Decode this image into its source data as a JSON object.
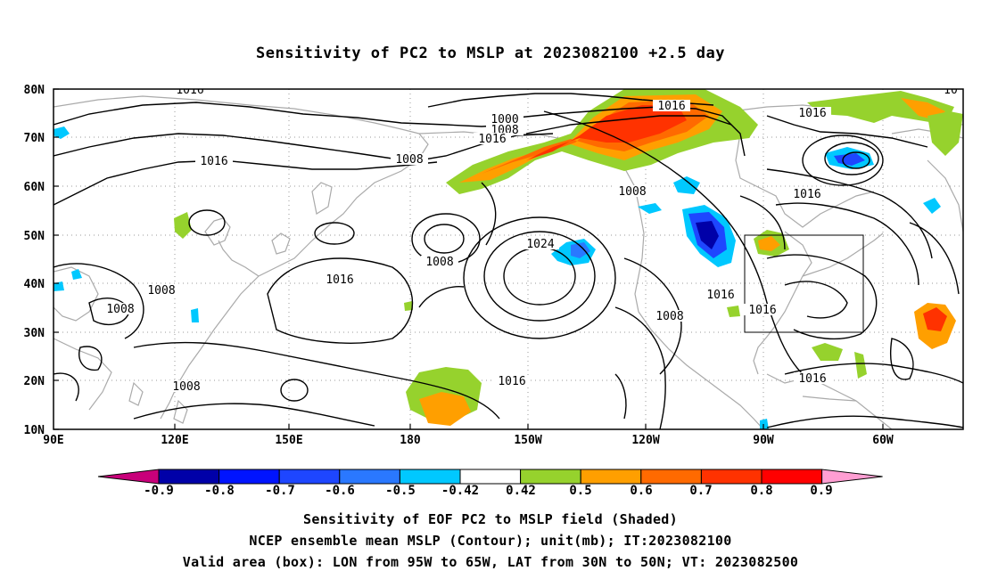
{
  "title": "Sensitivity of PC2 to MSLP at 2023082100 +2.5 day",
  "lat_labels": [
    "80N",
    "70N",
    "60N",
    "50N",
    "40N",
    "30N",
    "20N",
    "10N"
  ],
  "lon_labels": [
    "90E",
    "120E",
    "150E",
    "180",
    "150W",
    "120W",
    "90W",
    "60W"
  ],
  "contour_labels": [
    "1016",
    "1000",
    "1008",
    "1016",
    "1016",
    "1008",
    "1016",
    "1016",
    "1008",
    "1016",
    "1024",
    "1008",
    "1016",
    "1016",
    "1008",
    "1016",
    "1008",
    "1008",
    "1016",
    "1008",
    "1016",
    "10"
  ],
  "colorbar": {
    "ticks": [
      "-0.9",
      "-0.8",
      "-0.7",
      "-0.6",
      "-0.5",
      "-0.42",
      "0.42",
      "0.5",
      "0.6",
      "0.7",
      "0.8",
      "0.9"
    ],
    "colors": [
      "#c8007a",
      "#0000a8",
      "#0014ff",
      "#1e46ff",
      "#2a78ff",
      "#00c8ff",
      "#ffffff",
      "#96d22d",
      "#ff9f00",
      "#ff6a00",
      "#ff3200",
      "#ff0000",
      "#ff9ed2"
    ]
  },
  "caption": {
    "line1": "Sensitivity of EOF PC2 to MSLP field (Shaded)",
    "line2": "NCEP ensemble mean MSLP (Contour); unit(mb); IT:2023082100",
    "line3": "Valid area (box): LON from 95W to 65W, LAT from 30N to 50N; VT: 2023082500"
  }
}
